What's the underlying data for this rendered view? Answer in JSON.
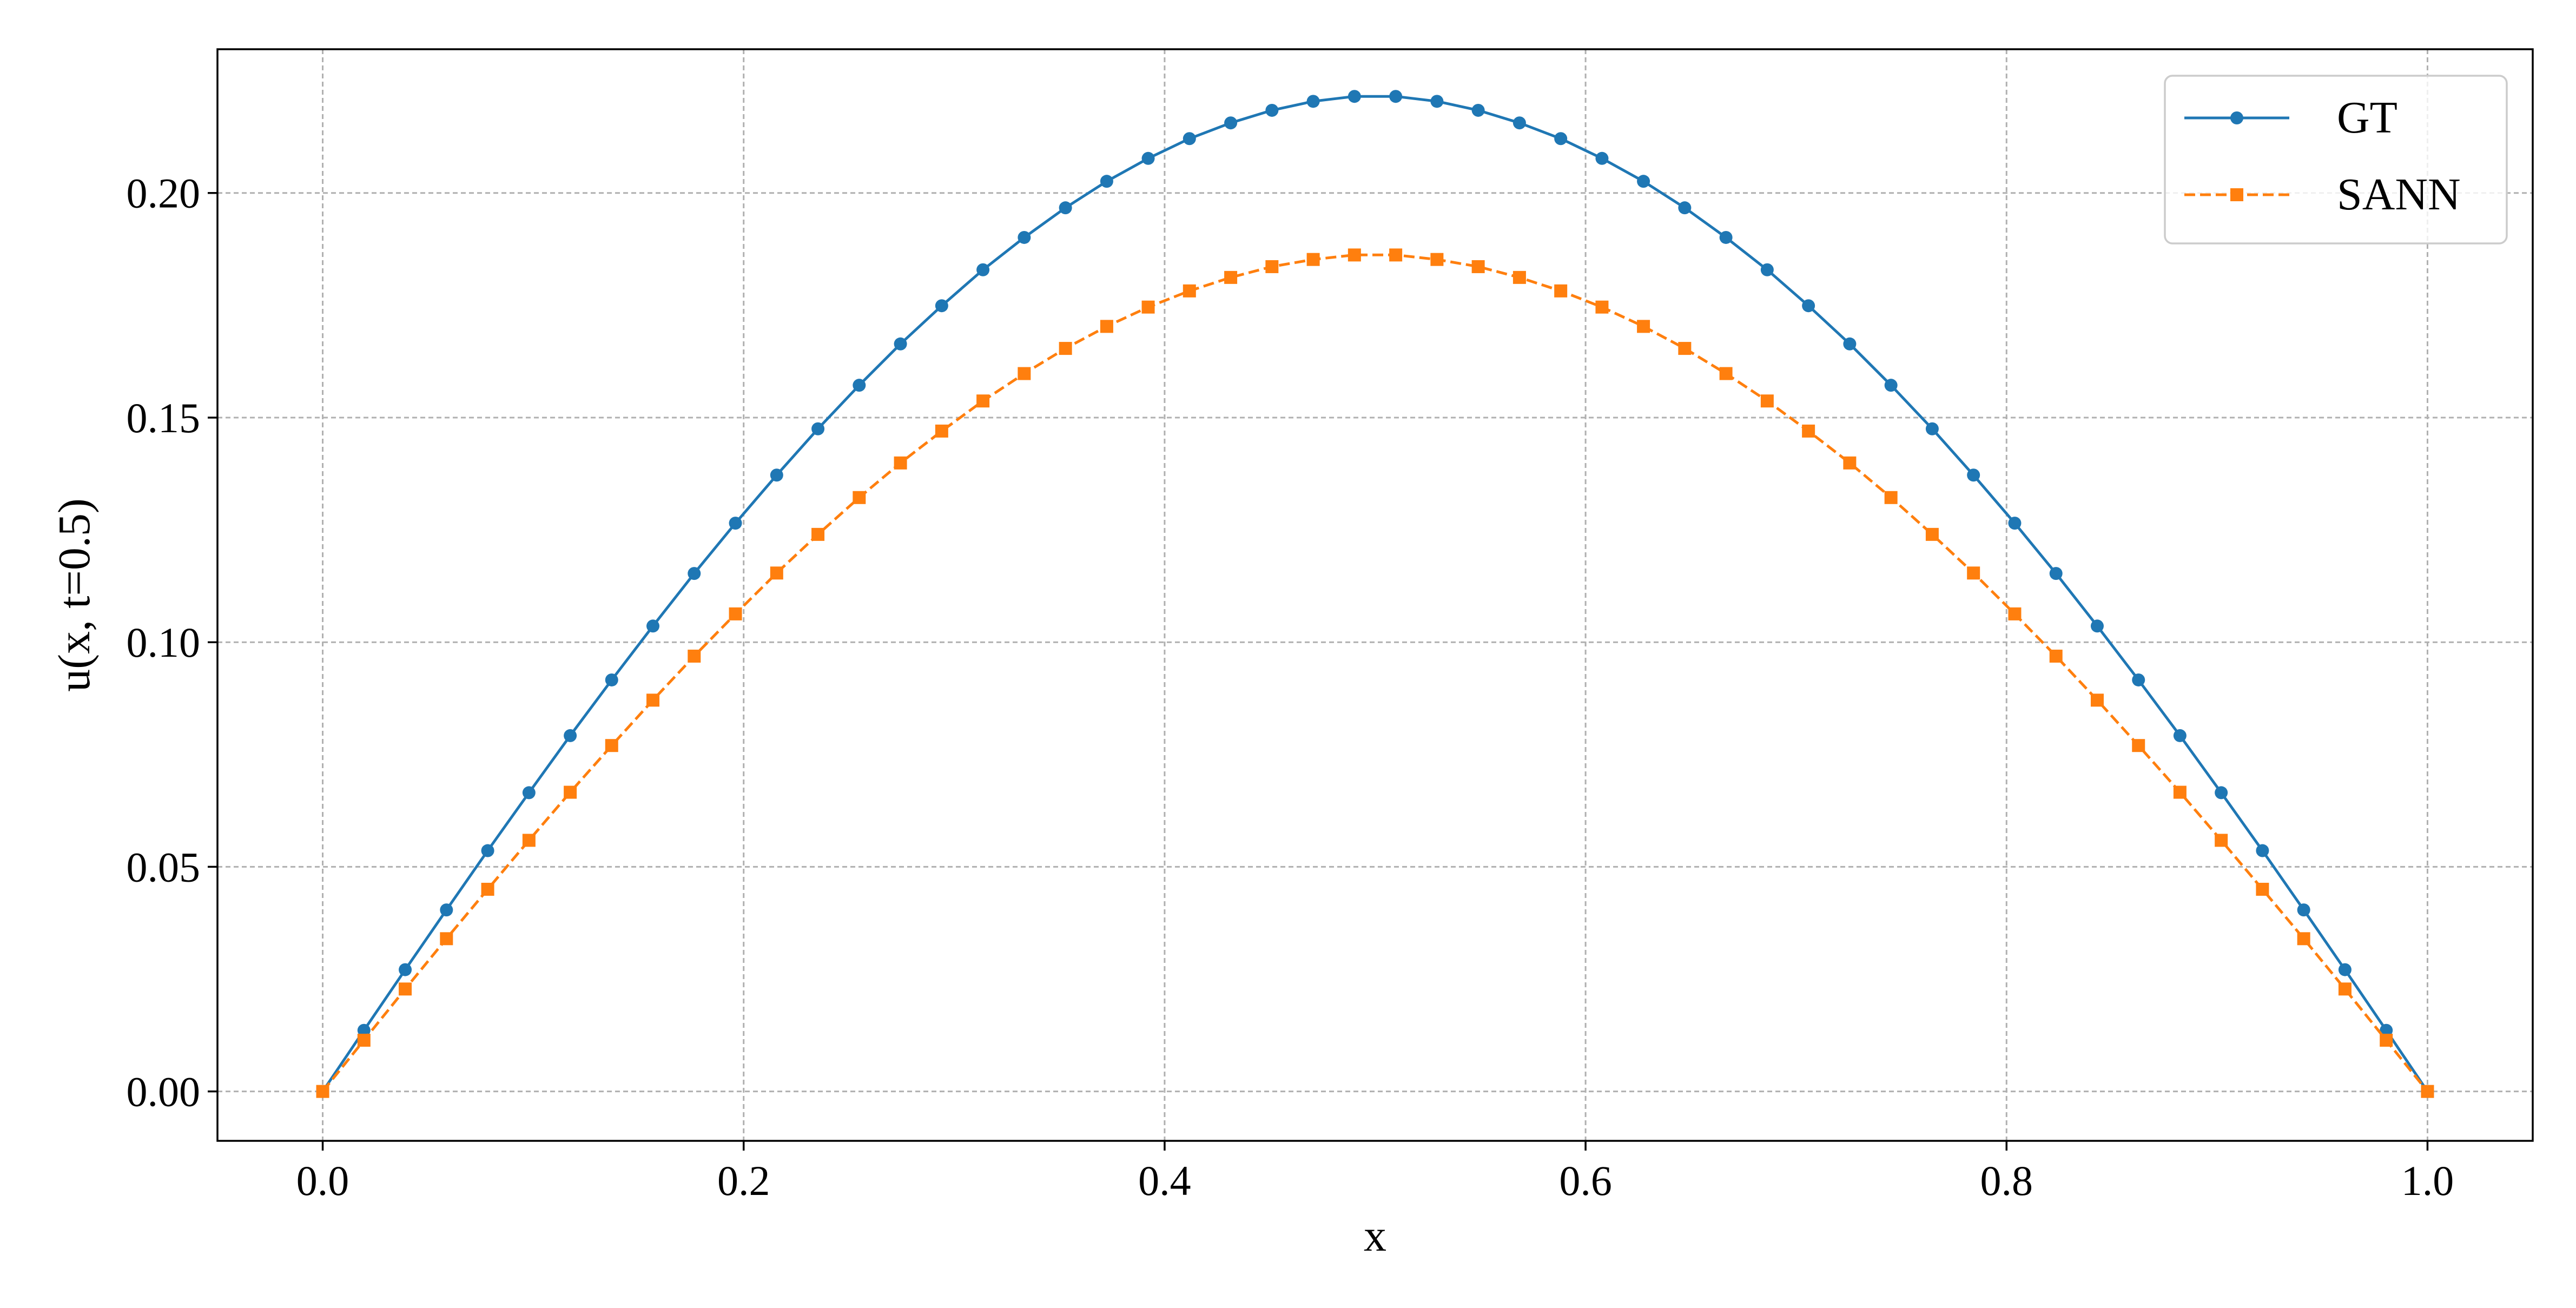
{
  "chart_data": {
    "type": "line",
    "title": "",
    "xlabel": "x",
    "ylabel": "u(x, t=0.5)",
    "xlim": [
      -0.05,
      1.05
    ],
    "ylim": [
      -0.011,
      0.232
    ],
    "xticks": [
      0.0,
      0.2,
      0.4,
      0.6,
      0.8,
      1.0
    ],
    "xtick_labels": [
      "0.0",
      "0.2",
      "0.4",
      "0.6",
      "0.8",
      "1.0"
    ],
    "yticks": [
      0.0,
      0.05,
      0.1,
      0.15,
      0.2
    ],
    "ytick_labels": [
      "0.00",
      "0.05",
      "0.10",
      "0.15",
      "0.20"
    ],
    "grid": true,
    "legend_position": "top-right",
    "x": [
      0.0,
      0.0196,
      0.0392,
      0.0588,
      0.0784,
      0.098,
      0.1176,
      0.1373,
      0.1569,
      0.1765,
      0.1961,
      0.2157,
      0.2353,
      0.2549,
      0.2745,
      0.2941,
      0.3137,
      0.3333,
      0.3529,
      0.3725,
      0.3922,
      0.4118,
      0.4314,
      0.451,
      0.4706,
      0.4902,
      0.5098,
      0.5294,
      0.549,
      0.5686,
      0.5882,
      0.6078,
      0.6275,
      0.6471,
      0.6667,
      0.6863,
      0.7059,
      0.7255,
      0.7451,
      0.7647,
      0.7843,
      0.8039,
      0.8235,
      0.8431,
      0.8627,
      0.8824,
      0.902,
      0.9216,
      0.9412,
      0.9608,
      0.9804,
      1.0
    ],
    "series": [
      {
        "name": "GT",
        "color": "#1f77b4",
        "linestyle": "solid",
        "marker": "circle",
        "values": [
          0.0,
          0.0136,
          0.0271,
          0.0404,
          0.0536,
          0.0665,
          0.0792,
          0.0916,
          0.1036,
          0.1153,
          0.1265,
          0.1372,
          0.1475,
          0.1572,
          0.1664,
          0.1749,
          0.1829,
          0.1901,
          0.1967,
          0.2026,
          0.2077,
          0.2121,
          0.2156,
          0.2184,
          0.2204,
          0.2215,
          0.2215,
          0.2204,
          0.2184,
          0.2156,
          0.2121,
          0.2077,
          0.2026,
          0.1967,
          0.1901,
          0.1829,
          0.1749,
          0.1664,
          0.1572,
          0.1475,
          0.1372,
          0.1265,
          0.1153,
          0.1036,
          0.0916,
          0.0792,
          0.0665,
          0.0536,
          0.0404,
          0.0271,
          0.0136,
          0.0
        ]
      },
      {
        "name": "SANN",
        "color": "#ff7f0e",
        "linestyle": "dashed",
        "marker": "square",
        "values": [
          0.0,
          0.0114,
          0.0228,
          0.034,
          0.045,
          0.0559,
          0.0666,
          0.077,
          0.0871,
          0.0969,
          0.1063,
          0.1154,
          0.124,
          0.1322,
          0.1399,
          0.147,
          0.1537,
          0.1598,
          0.1654,
          0.1703,
          0.1746,
          0.1782,
          0.1812,
          0.1836,
          0.1852,
          0.1862,
          0.1862,
          0.1852,
          0.1836,
          0.1812,
          0.1782,
          0.1746,
          0.1703,
          0.1654,
          0.1598,
          0.1537,
          0.147,
          0.1399,
          0.1322,
          0.124,
          0.1154,
          0.1063,
          0.0969,
          0.0871,
          0.077,
          0.0666,
          0.0559,
          0.045,
          0.034,
          0.0228,
          0.0114,
          0.0
        ]
      }
    ]
  }
}
